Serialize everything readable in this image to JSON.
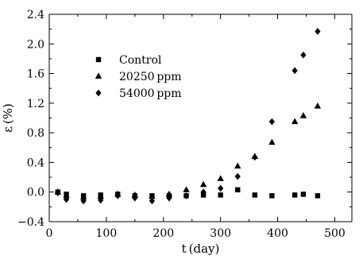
{
  "chart_data": {
    "type": "scatter",
    "title": "",
    "xlabel": "t (day)",
    "ylabel": "ε (%)",
    "xlim": [
      0,
      530
    ],
    "ylim": [
      -0.4,
      2.4
    ],
    "x_ticks": [
      0,
      100,
      200,
      300,
      400,
      500
    ],
    "y_ticks": [
      -0.4,
      0.0,
      0.4,
      0.8,
      1.2,
      1.6,
      2.0,
      2.4
    ],
    "x_tick_labels": [
      "0",
      "100",
      "200",
      "300",
      "400",
      "500"
    ],
    "y_tick_labels": [
      "−0.4",
      "0.0",
      "0.4",
      "0.8",
      "1.2",
      "1.6",
      "2.0",
      "2.4"
    ],
    "grid": false,
    "legend_position": "upper-left",
    "series": [
      {
        "name": "Control",
        "marker": "square",
        "points": [
          [
            15,
            0.0
          ],
          [
            30,
            -0.03
          ],
          [
            60,
            -0.05
          ],
          [
            90,
            -0.04
          ],
          [
            120,
            -0.03
          ],
          [
            150,
            -0.05
          ],
          [
            180,
            -0.05
          ],
          [
            210,
            -0.05
          ],
          [
            240,
            -0.05
          ],
          [
            270,
            -0.04
          ],
          [
            300,
            -0.04
          ],
          [
            330,
            0.03
          ],
          [
            360,
            -0.04
          ],
          [
            390,
            -0.05
          ],
          [
            430,
            -0.04
          ],
          [
            445,
            -0.03
          ],
          [
            470,
            -0.05
          ]
        ]
      },
      {
        "name": "20250 ppm",
        "marker": "triangle",
        "points": [
          [
            15,
            0.0
          ],
          [
            30,
            -0.05
          ],
          [
            60,
            -0.07
          ],
          [
            90,
            -0.06
          ],
          [
            120,
            -0.03
          ],
          [
            150,
            -0.04
          ],
          [
            180,
            -0.06
          ],
          [
            210,
            -0.03
          ],
          [
            240,
            0.03
          ],
          [
            270,
            0.1
          ],
          [
            300,
            0.18
          ],
          [
            330,
            0.35
          ],
          [
            360,
            0.48
          ],
          [
            390,
            0.67
          ],
          [
            430,
            0.95
          ],
          [
            445,
            1.03
          ],
          [
            470,
            1.16
          ]
        ]
      },
      {
        "name": "54000 ppm",
        "marker": "diamond",
        "points": [
          [
            15,
            -0.01
          ],
          [
            30,
            -0.1
          ],
          [
            60,
            -0.12
          ],
          [
            90,
            -0.11
          ],
          [
            120,
            -0.05
          ],
          [
            150,
            -0.08
          ],
          [
            180,
            -0.12
          ],
          [
            210,
            -0.08
          ],
          [
            240,
            -0.05
          ],
          [
            270,
            0.0
          ],
          [
            300,
            0.05
          ],
          [
            330,
            0.21
          ],
          [
            360,
            0.47
          ],
          [
            390,
            0.95
          ],
          [
            430,
            1.64
          ],
          [
            445,
            1.85
          ],
          [
            470,
            2.17
          ]
        ]
      }
    ]
  }
}
